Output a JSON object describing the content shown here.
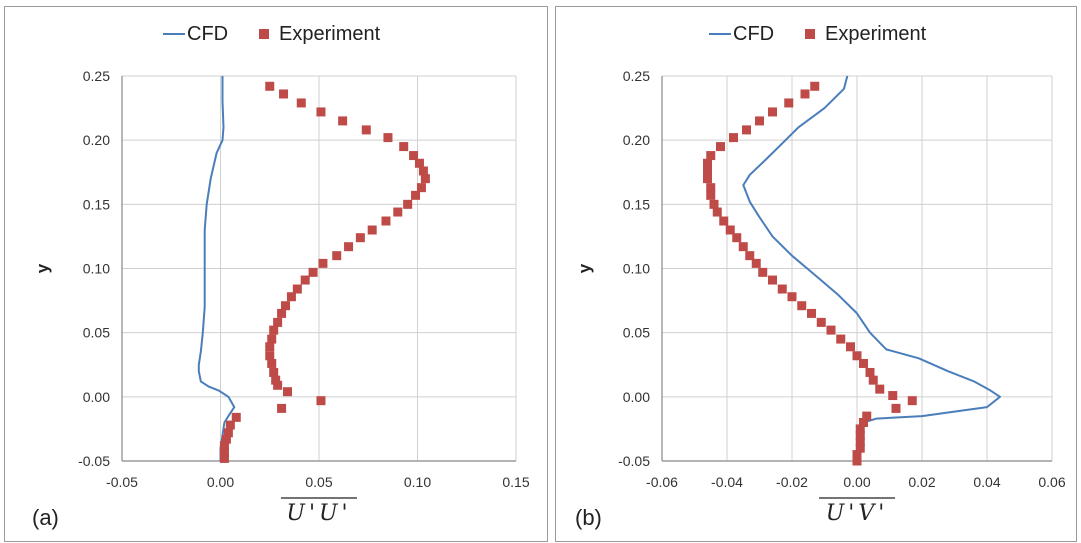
{
  "colors": {
    "cfd": "#4a7ebb",
    "experiment": "#be4b48",
    "grid": "#d0d0d0",
    "axis": "#888888"
  },
  "chart_data": [
    {
      "type": "scatter",
      "panel_label": "(a)",
      "xlabel": "U'U'",
      "ylabel": "y",
      "xlim": [
        -0.05,
        0.15
      ],
      "ylim": [
        -0.05,
        0.25
      ],
      "xticks": [
        "-0.05",
        "0.00",
        "0.05",
        "0.10",
        "0.15"
      ],
      "yticks": [
        "-0.05",
        "0.00",
        "0.05",
        "0.10",
        "0.15",
        "0.20",
        "0.25"
      ],
      "grid": true,
      "legend": {
        "placement": "top-center",
        "entries": [
          "CFD",
          "Experiment"
        ]
      },
      "series": [
        {
          "name": "CFD",
          "kind": "line",
          "points": [
            [
              0.001,
              0.25
            ],
            [
              0.001,
              0.23
            ],
            [
              0.0015,
              0.21
            ],
            [
              0.001,
              0.2
            ],
            [
              -0.002,
              0.19
            ],
            [
              -0.005,
              0.17
            ],
            [
              -0.007,
              0.15
            ],
            [
              -0.008,
              0.13
            ],
            [
              -0.008,
              0.11
            ],
            [
              -0.008,
              0.09
            ],
            [
              -0.008,
              0.07
            ],
            [
              -0.009,
              0.05
            ],
            [
              -0.01,
              0.035
            ],
            [
              -0.011,
              0.025
            ],
            [
              -0.011,
              0.02
            ],
            [
              -0.01,
              0.012
            ],
            [
              -0.006,
              0.008
            ],
            [
              -0.001,
              0.005
            ],
            [
              0.004,
              0.0
            ],
            [
              0.007,
              -0.008
            ],
            [
              0.004,
              -0.015
            ],
            [
              0.002,
              -0.02
            ],
            [
              0.001,
              -0.03
            ],
            [
              0.0,
              -0.04
            ],
            [
              0.0,
              -0.05
            ]
          ]
        },
        {
          "name": "Experiment",
          "kind": "scatter",
          "points": [
            [
              0.025,
              0.242
            ],
            [
              0.032,
              0.236
            ],
            [
              0.041,
              0.229
            ],
            [
              0.051,
              0.222
            ],
            [
              0.062,
              0.215
            ],
            [
              0.074,
              0.208
            ],
            [
              0.085,
              0.202
            ],
            [
              0.093,
              0.195
            ],
            [
              0.098,
              0.188
            ],
            [
              0.101,
              0.182
            ],
            [
              0.103,
              0.176
            ],
            [
              0.104,
              0.17
            ],
            [
              0.102,
              0.163
            ],
            [
              0.099,
              0.157
            ],
            [
              0.095,
              0.15
            ],
            [
              0.09,
              0.144
            ],
            [
              0.084,
              0.137
            ],
            [
              0.077,
              0.13
            ],
            [
              0.071,
              0.124
            ],
            [
              0.065,
              0.117
            ],
            [
              0.059,
              0.11
            ],
            [
              0.052,
              0.104
            ],
            [
              0.047,
              0.097
            ],
            [
              0.043,
              0.091
            ],
            [
              0.039,
              0.084
            ],
            [
              0.036,
              0.078
            ],
            [
              0.033,
              0.071
            ],
            [
              0.031,
              0.065
            ],
            [
              0.029,
              0.058
            ],
            [
              0.027,
              0.052
            ],
            [
              0.026,
              0.045
            ],
            [
              0.025,
              0.039
            ],
            [
              0.025,
              0.032
            ],
            [
              0.026,
              0.026
            ],
            [
              0.027,
              0.019
            ],
            [
              0.028,
              0.013
            ],
            [
              0.029,
              0.009
            ],
            [
              0.034,
              0.004
            ],
            [
              0.051,
              -0.003
            ],
            [
              0.031,
              -0.009
            ],
            [
              0.008,
              -0.016
            ],
            [
              0.005,
              -0.022
            ],
            [
              0.004,
              -0.028
            ],
            [
              0.003,
              -0.033
            ],
            [
              0.002,
              -0.038
            ],
            [
              0.002,
              -0.043
            ],
            [
              0.002,
              -0.048
            ]
          ]
        }
      ]
    },
    {
      "type": "scatter",
      "panel_label": "(b)",
      "xlabel": "U'V'",
      "ylabel": "y",
      "xlim": [
        -0.06,
        0.06
      ],
      "ylim": [
        -0.05,
        0.25
      ],
      "xticks": [
        "-0.06",
        "-0.04",
        "-0.02",
        "0.00",
        "0.02",
        "0.04",
        "0.06"
      ],
      "yticks": [
        "-0.05",
        "0.00",
        "0.05",
        "0.10",
        "0.15",
        "0.20",
        "0.25"
      ],
      "grid": true,
      "legend": {
        "placement": "top-center",
        "entries": [
          "CFD",
          "Experiment"
        ]
      },
      "series": [
        {
          "name": "CFD",
          "kind": "line",
          "points": [
            [
              -0.003,
              0.25
            ],
            [
              -0.004,
              0.24
            ],
            [
              -0.01,
              0.225
            ],
            [
              -0.018,
              0.21
            ],
            [
              -0.022,
              0.2
            ],
            [
              -0.028,
              0.185
            ],
            [
              -0.033,
              0.173
            ],
            [
              -0.035,
              0.165
            ],
            [
              -0.033,
              0.152
            ],
            [
              -0.03,
              0.14
            ],
            [
              -0.026,
              0.125
            ],
            [
              -0.02,
              0.11
            ],
            [
              -0.013,
              0.095
            ],
            [
              -0.006,
              0.08
            ],
            [
              0.0,
              0.065
            ],
            [
              0.004,
              0.05
            ],
            [
              0.009,
              0.037
            ],
            [
              0.019,
              0.03
            ],
            [
              0.028,
              0.02
            ],
            [
              0.036,
              0.012
            ],
            [
              0.041,
              0.005
            ],
            [
              0.044,
              0.0
            ],
            [
              0.04,
              -0.008
            ],
            [
              0.02,
              -0.015
            ],
            [
              0.006,
              -0.017
            ],
            [
              0.002,
              -0.02
            ],
            [
              0.001,
              -0.03
            ],
            [
              0.0,
              -0.04
            ],
            [
              0.0,
              -0.05
            ]
          ]
        },
        {
          "name": "Experiment",
          "kind": "scatter",
          "points": [
            [
              -0.013,
              0.242
            ],
            [
              -0.016,
              0.236
            ],
            [
              -0.021,
              0.229
            ],
            [
              -0.026,
              0.222
            ],
            [
              -0.03,
              0.215
            ],
            [
              -0.034,
              0.208
            ],
            [
              -0.038,
              0.202
            ],
            [
              -0.042,
              0.195
            ],
            [
              -0.045,
              0.188
            ],
            [
              -0.046,
              0.182
            ],
            [
              -0.046,
              0.176
            ],
            [
              -0.046,
              0.17
            ],
            [
              -0.045,
              0.163
            ],
            [
              -0.045,
              0.157
            ],
            [
              -0.044,
              0.15
            ],
            [
              -0.043,
              0.144
            ],
            [
              -0.041,
              0.137
            ],
            [
              -0.039,
              0.13
            ],
            [
              -0.037,
              0.124
            ],
            [
              -0.035,
              0.117
            ],
            [
              -0.033,
              0.11
            ],
            [
              -0.031,
              0.104
            ],
            [
              -0.029,
              0.097
            ],
            [
              -0.026,
              0.091
            ],
            [
              -0.023,
              0.084
            ],
            [
              -0.02,
              0.078
            ],
            [
              -0.017,
              0.071
            ],
            [
              -0.014,
              0.065
            ],
            [
              -0.011,
              0.058
            ],
            [
              -0.008,
              0.052
            ],
            [
              -0.005,
              0.045
            ],
            [
              -0.002,
              0.039
            ],
            [
              0.0,
              0.032
            ],
            [
              0.002,
              0.026
            ],
            [
              0.004,
              0.019
            ],
            [
              0.005,
              0.013
            ],
            [
              0.007,
              0.006
            ],
            [
              0.011,
              0.001
            ],
            [
              0.017,
              -0.003
            ],
            [
              0.012,
              -0.009
            ],
            [
              0.003,
              -0.015
            ],
            [
              0.002,
              -0.02
            ],
            [
              0.001,
              -0.025
            ],
            [
              0.001,
              -0.03
            ],
            [
              0.001,
              -0.035
            ],
            [
              0.001,
              -0.04
            ],
            [
              0.0,
              -0.045
            ],
            [
              0.0,
              -0.05
            ]
          ]
        }
      ]
    }
  ]
}
